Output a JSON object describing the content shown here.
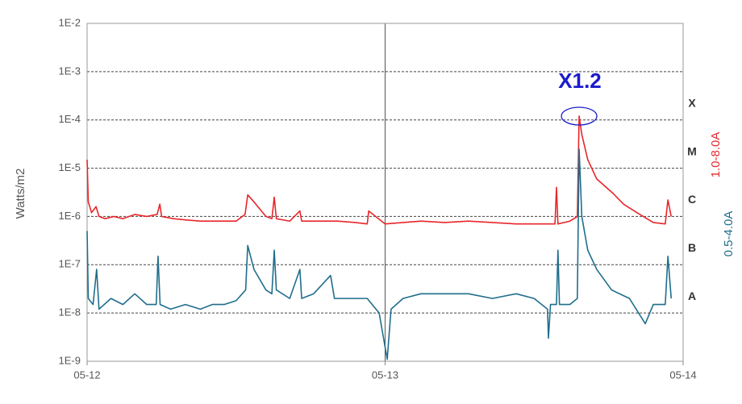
{
  "chart_data": {
    "type": "line",
    "ylabel": "Watts/m2",
    "log_y": true,
    "ylim": [
      1e-09,
      0.01
    ],
    "yticks": [
      {
        "value": 1e-09,
        "label": "1E-9"
      },
      {
        "value": 1e-08,
        "label": "1E-8"
      },
      {
        "value": 1e-07,
        "label": "1E-7"
      },
      {
        "value": 1e-06,
        "label": "1E-6"
      },
      {
        "value": 1e-05,
        "label": "1E-5"
      },
      {
        "value": 0.0001,
        "label": "1E-4"
      },
      {
        "value": 0.001,
        "label": "1E-3"
      },
      {
        "value": 0.01,
        "label": "1E-2"
      }
    ],
    "xlim": [
      0,
      2
    ],
    "xticks": [
      {
        "value": 0,
        "label": "05-12"
      },
      {
        "value": 1,
        "label": "05-13"
      },
      {
        "value": 2,
        "label": "05-14"
      }
    ],
    "grid": true,
    "xgrid": true,
    "flare_classes": [
      {
        "label": "A",
        "value": 1e-08
      },
      {
        "label": "B",
        "value": 1e-07
      },
      {
        "label": "C",
        "value": 1e-06
      },
      {
        "label": "M",
        "value": 1e-05
      },
      {
        "label": "X",
        "value": 0.0001
      }
    ],
    "annotations": [
      {
        "text": "X1.2",
        "x": 1.651,
        "y": 0.00012,
        "color": "#1a1acc"
      }
    ],
    "series": [
      {
        "name": "1.0-8.0A",
        "color": "#e8262a",
        "x": [
          0,
          0.004,
          0.015,
          0.03,
          0.04,
          0.06,
          0.09,
          0.12,
          0.16,
          0.2,
          0.235,
          0.244,
          0.25,
          0.29,
          0.33,
          0.38,
          0.42,
          0.46,
          0.5,
          0.53,
          0.539,
          0.56,
          0.6,
          0.62,
          0.628,
          0.635,
          0.68,
          0.714,
          0.72,
          0.78,
          0.84,
          0.9,
          0.94,
          0.945,
          1.0,
          1.06,
          1.12,
          1.2,
          1.28,
          1.36,
          1.44,
          1.5,
          1.57,
          1.575,
          1.58,
          1.62,
          1.645,
          1.651,
          1.66,
          1.68,
          1.71,
          1.765,
          1.8,
          1.845,
          1.9,
          1.94,
          1.949,
          1.96
        ],
        "values": [
          1.5e-05,
          2e-06,
          1.2e-06,
          1.6e-06,
          1e-06,
          9e-07,
          1e-06,
          9e-07,
          1.1e-06,
          1e-06,
          1.1e-06,
          1.8e-06,
          1e-06,
          9e-07,
          8.5e-07,
          8e-07,
          8e-07,
          8e-07,
          8e-07,
          1.1e-06,
          2.8e-06,
          2e-06,
          1e-06,
          9e-07,
          2.5e-06,
          9e-07,
          8e-07,
          1.3e-06,
          8e-07,
          8e-07,
          8e-07,
          7.5e-07,
          7e-07,
          1.3e-06,
          7e-07,
          7.5e-07,
          8e-07,
          7.5e-07,
          8e-07,
          7.5e-07,
          7e-07,
          7e-07,
          7e-07,
          4e-06,
          7e-07,
          8e-07,
          1e-06,
          0.00012,
          5e-05,
          1.5e-05,
          6e-06,
          3e-06,
          1.8e-06,
          1.2e-06,
          7.5e-07,
          7e-07,
          2.2e-06,
          1e-06
        ]
      },
      {
        "name": "0.5-4.0A",
        "color": "#1f6e8c",
        "x": [
          0,
          0.004,
          0.02,
          0.032,
          0.04,
          0.08,
          0.12,
          0.16,
          0.2,
          0.232,
          0.238,
          0.245,
          0.28,
          0.33,
          0.38,
          0.42,
          0.46,
          0.5,
          0.532,
          0.539,
          0.56,
          0.6,
          0.62,
          0.628,
          0.635,
          0.68,
          0.714,
          0.72,
          0.76,
          0.817,
          0.83,
          0.88,
          0.94,
          0.98,
          1.007,
          1.02,
          1.06,
          1.12,
          1.2,
          1.28,
          1.36,
          1.44,
          1.5,
          1.545,
          1.548,
          1.555,
          1.575,
          1.58,
          1.585,
          1.62,
          1.645,
          1.651,
          1.66,
          1.68,
          1.71,
          1.76,
          1.82,
          1.873,
          1.9,
          1.94,
          1.949,
          1.96
        ],
        "values": [
          5e-07,
          2e-08,
          1.5e-08,
          8e-08,
          1.2e-08,
          2e-08,
          1.5e-08,
          2.5e-08,
          1.5e-08,
          1.5e-08,
          1.5e-07,
          1.5e-08,
          1.2e-08,
          1.5e-08,
          1.2e-08,
          1.5e-08,
          1.5e-08,
          1.8e-08,
          3e-08,
          2.5e-07,
          8e-08,
          3e-08,
          2.5e-08,
          2e-07,
          3e-08,
          2e-08,
          8e-08,
          2e-08,
          2.5e-08,
          6e-08,
          2e-08,
          2e-08,
          2e-08,
          1e-08,
          1.1e-09,
          1.2e-08,
          2e-08,
          2.5e-08,
          2.5e-08,
          2.5e-08,
          2e-08,
          2.5e-08,
          2e-08,
          1.2e-08,
          3e-09,
          1.5e-08,
          1.5e-08,
          2e-07,
          1.5e-08,
          1.5e-08,
          2e-08,
          2.5e-05,
          1e-06,
          2e-07,
          8e-08,
          3e-08,
          2e-08,
          6e-09,
          1.5e-08,
          1.5e-08,
          1.5e-07,
          2e-08
        ]
      }
    ]
  }
}
